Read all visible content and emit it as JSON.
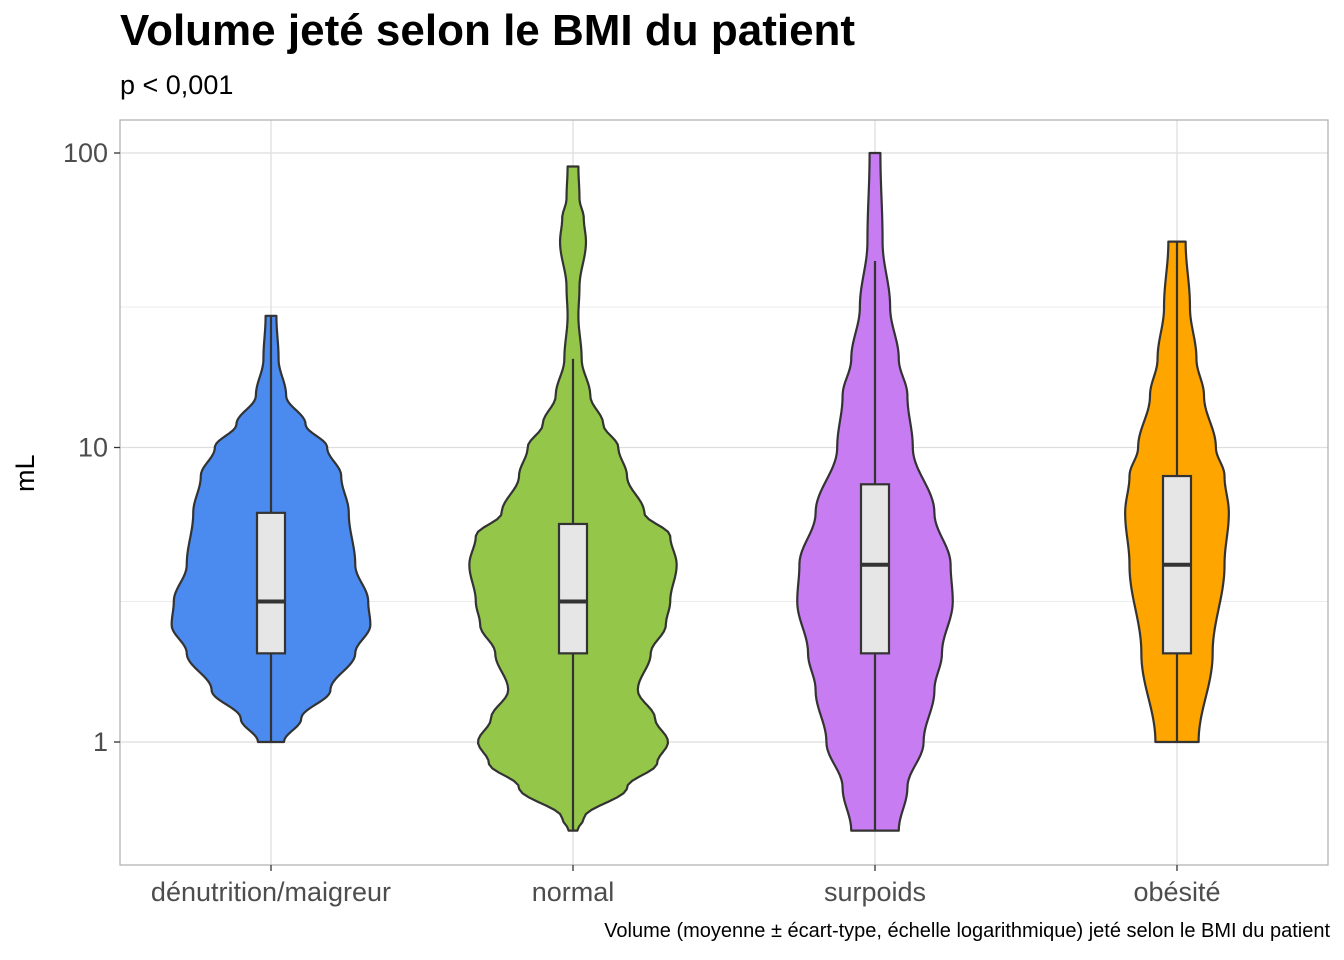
{
  "chart_data": {
    "type": "violin",
    "title": "Volume jeté selon le BMI du patient",
    "subtitle": "p < 0,001",
    "ylabel": "mL",
    "xlabel": "",
    "caption": "Volume (moyenne ± écart-type, échelle logarithmique) jeté selon le BMI du patient",
    "y_scale": "log10",
    "ylim": [
      0.44,
      130
    ],
    "y_ticks": [
      1,
      10,
      100
    ],
    "y_tick_labels": [
      "1",
      "10",
      "100"
    ],
    "grid": true,
    "categories": [
      "dénutrition/maigreur",
      "normal",
      "surpoids",
      "obésité"
    ],
    "series": [
      {
        "category": "dénutrition/maigreur",
        "color": "#4b8bef",
        "box": {
          "whisker_low": 1,
          "q1": 2,
          "median": 3,
          "q3": 6,
          "whisker_high": 28
        },
        "violin_min": 1,
        "violin_max": 28,
        "density": [
          [
            1.0,
            0.12
          ],
          [
            1.2,
            0.28
          ],
          [
            1.5,
            0.55
          ],
          [
            2.0,
            0.78
          ],
          [
            2.5,
            0.92
          ],
          [
            3.0,
            0.9
          ],
          [
            4.0,
            0.78
          ],
          [
            6.0,
            0.72
          ],
          [
            8.0,
            0.65
          ],
          [
            10.0,
            0.52
          ],
          [
            12.0,
            0.32
          ],
          [
            15.0,
            0.14
          ],
          [
            20.0,
            0.07
          ],
          [
            28.0,
            0.05
          ]
        ]
      },
      {
        "category": "normal",
        "color": "#94c649",
        "box": {
          "whisker_low": 0.5,
          "q1": 2,
          "median": 3,
          "q3": 5.5,
          "whisker_high": 20
        },
        "violin_min": 0.5,
        "violin_max": 90,
        "density": [
          [
            0.5,
            0.04
          ],
          [
            0.55,
            0.1
          ],
          [
            0.7,
            0.5
          ],
          [
            0.85,
            0.78
          ],
          [
            1.0,
            0.88
          ],
          [
            1.2,
            0.76
          ],
          [
            1.5,
            0.6
          ],
          [
            2.0,
            0.72
          ],
          [
            2.5,
            0.86
          ],
          [
            3.0,
            0.9
          ],
          [
            4.0,
            0.96
          ],
          [
            5.0,
            0.9
          ],
          [
            6.0,
            0.66
          ],
          [
            8.0,
            0.5
          ],
          [
            10.0,
            0.42
          ],
          [
            12.0,
            0.28
          ],
          [
            15.0,
            0.16
          ],
          [
            20.0,
            0.08
          ],
          [
            28.0,
            0.05
          ],
          [
            35.0,
            0.06
          ],
          [
            50.0,
            0.12
          ],
          [
            60.0,
            0.1
          ],
          [
            70.0,
            0.06
          ],
          [
            90.0,
            0.05
          ]
        ]
      },
      {
        "category": "surpoids",
        "color": "#c77cf2",
        "box": {
          "whisker_low": 0.5,
          "q1": 2,
          "median": 4,
          "q3": 7.5,
          "whisker_high": 43
        },
        "violin_min": 0.5,
        "violin_max": 100,
        "density": [
          [
            0.5,
            0.22
          ],
          [
            0.7,
            0.3
          ],
          [
            1.0,
            0.45
          ],
          [
            1.5,
            0.55
          ],
          [
            2.0,
            0.62
          ],
          [
            3.0,
            0.72
          ],
          [
            4.0,
            0.7
          ],
          [
            6.0,
            0.55
          ],
          [
            10.0,
            0.35
          ],
          [
            15.0,
            0.3
          ],
          [
            20.0,
            0.22
          ],
          [
            30.0,
            0.14
          ],
          [
            50.0,
            0.07
          ],
          [
            100.0,
            0.05
          ]
        ]
      },
      {
        "category": "obésité",
        "color": "#ffa500",
        "box": {
          "whisker_low": 1,
          "q1": 2,
          "median": 4,
          "q3": 8,
          "whisker_high": 50
        },
        "violin_min": 1,
        "violin_max": 50,
        "density": [
          [
            1.0,
            0.2
          ],
          [
            2.0,
            0.33
          ],
          [
            4.0,
            0.44
          ],
          [
            6.0,
            0.48
          ],
          [
            8.0,
            0.44
          ],
          [
            10.0,
            0.36
          ],
          [
            15.0,
            0.25
          ],
          [
            20.0,
            0.18
          ],
          [
            30.0,
            0.12
          ],
          [
            50.0,
            0.08
          ]
        ]
      }
    ]
  }
}
